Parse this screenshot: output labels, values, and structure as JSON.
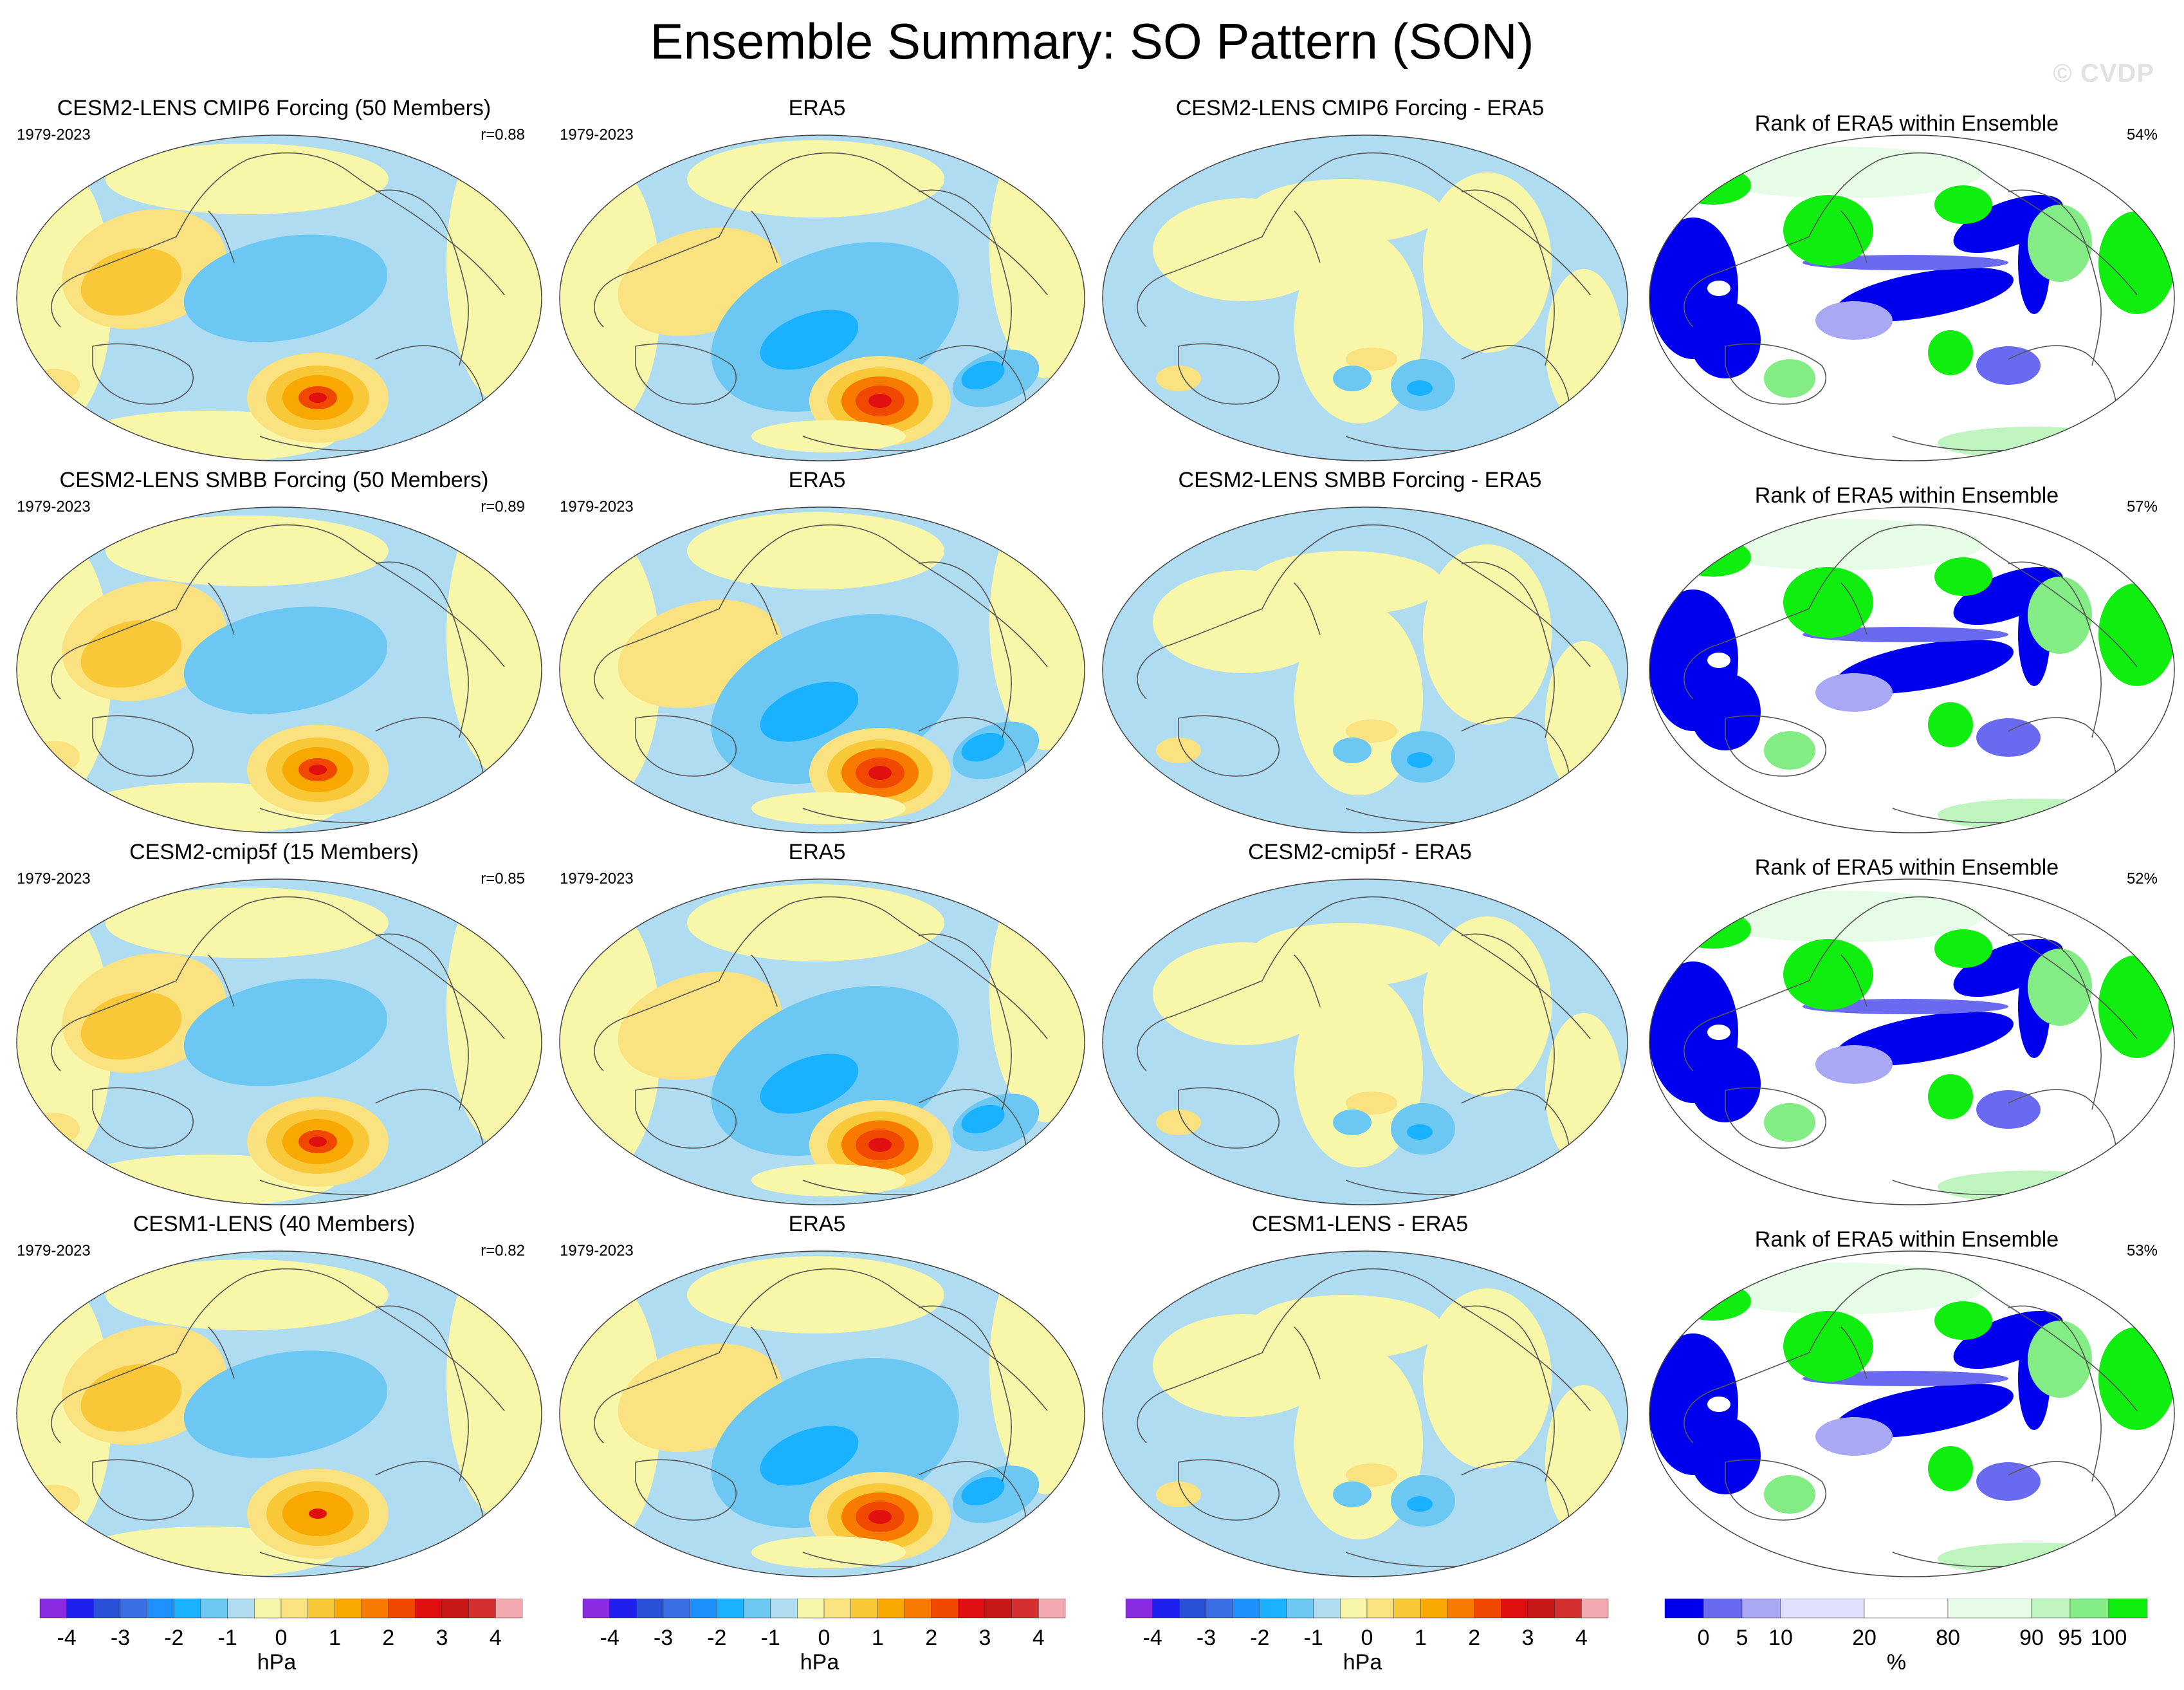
{
  "figure": {
    "title": "Ensemble Summary: SO Pattern (SON)",
    "watermark": "© CVDP"
  },
  "chart_data": {
    "type": "heatmap",
    "layout": "4 rows x 4 columns of global maps",
    "rows": [
      {
        "ensemble_title": "CESM2-LENS CMIP6 Forcing (50 Members)",
        "period": "1979-2023",
        "pattern_correlation": "r=0.88",
        "era5_title": "ERA5",
        "era5_period": "1979-2023",
        "difference_title": "CESM2-LENS CMIP6 Forcing - ERA5",
        "rank_title": "Rank of ERA5 within Ensemble",
        "rank_percent": "54%"
      },
      {
        "ensemble_title": "CESM2-LENS SMBB Forcing (50 Members)",
        "period": "1979-2023",
        "pattern_correlation": "r=0.89",
        "era5_title": "ERA5",
        "era5_period": "1979-2023",
        "difference_title": "CESM2-LENS SMBB Forcing - ERA5",
        "rank_title": "Rank of ERA5 within Ensemble",
        "rank_percent": "57%"
      },
      {
        "ensemble_title": "CESM2-cmip5f (15 Members)",
        "period": "1979-2023",
        "pattern_correlation": "r=0.85",
        "era5_title": "ERA5",
        "era5_period": "1979-2023",
        "difference_title": "CESM2-cmip5f - ERA5",
        "rank_title": "Rank of ERA5 within Ensemble",
        "rank_percent": "52%"
      },
      {
        "ensemble_title": "CESM1-LENS (40 Members)",
        "period": "1979-2023",
        "pattern_correlation": "r=0.82",
        "era5_title": "ERA5",
        "era5_period": "1979-2023",
        "difference_title": "CESM1-LENS - ERA5",
        "rank_title": "Rank of ERA5 within Ensemble",
        "rank_percent": "53%"
      }
    ],
    "colorbars": {
      "hpa": {
        "units": "hPa",
        "tick_labels": [
          "-4",
          "-3",
          "-2",
          "-1",
          "0",
          "1",
          "2",
          "3",
          "4"
        ],
        "range": [
          -4.5,
          4.5
        ],
        "colors": [
          "#8a2be2",
          "#2020ee",
          "#2a52d8",
          "#3a6fe6",
          "#1e90ff",
          "#1ab2ff",
          "#6cc8f2",
          "#b0dcf2",
          "#f8f6a8",
          "#fae280",
          "#f8c838",
          "#f8a800",
          "#f87a00",
          "#f04800",
          "#e01010",
          "#c81818",
          "#d43030",
          "#f4a8b0"
        ]
      },
      "rank": {
        "units": "%",
        "tick_labels": [
          "0",
          "5",
          "10",
          "20",
          "80",
          "90",
          "95",
          "100"
        ],
        "colors": [
          "#0000ee",
          "#6a6af0",
          "#a8a8f4",
          "#e0e0fa",
          "#ffffff",
          "#e6fce6",
          "#bef4be",
          "#84ec84",
          "#10ee10"
        ]
      }
    }
  },
  "colors": {
    "land_outline": "#555555",
    "neutral_positive": "#f8f6a8",
    "neutral_negative": "#b0dcf2"
  }
}
